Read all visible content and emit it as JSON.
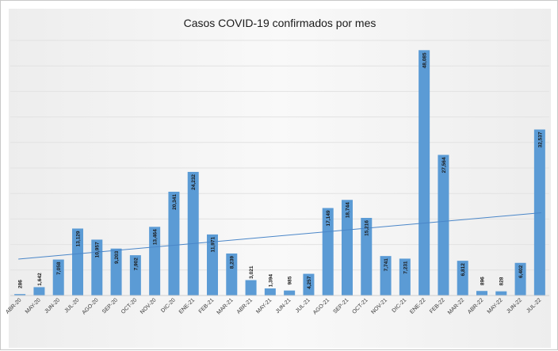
{
  "chart_data": {
    "type": "bar",
    "title": "Casos COVID-19 confirmados por mes",
    "xlabel": "",
    "ylabel": "",
    "ylim": [
      0,
      50000
    ],
    "grid": true,
    "legend": "none",
    "trendline": "linear",
    "categories": [
      "ABR-20",
      "MAY-20",
      "JUN-20",
      "JUL-20",
      "AGO-20",
      "SEP-20",
      "OCT-20",
      "NOV-20",
      "DIC-20",
      "ENE-21",
      "FEB-21",
      "MAR-21",
      "ABR-21",
      "MAY-21",
      "JUN-21",
      "JUL-21",
      "AGO-21",
      "SEP-21",
      "OCT-21",
      "NOV-21",
      "DIC-21",
      "ENE-22",
      "FEB-22",
      "MAR-22",
      "ABR-22",
      "MAY-22",
      "JUN-22",
      "JUL-22"
    ],
    "values": [
      286,
      1642,
      7058,
      13129,
      10957,
      9203,
      7902,
      13464,
      20341,
      24232,
      11971,
      8239,
      3021,
      1394,
      985,
      4257,
      17149,
      18744,
      15216,
      7741,
      7231,
      48085,
      27564,
      6812,
      896,
      828,
      6402,
      32537
    ],
    "value_labels": [
      "286",
      "1,642",
      "7,058",
      "13,129",
      "10,957",
      "9,203",
      "7,902",
      "13,464",
      "20,341",
      "24,232",
      "11,971",
      "8,239",
      "3,021",
      "1,394",
      "985",
      "4,257",
      "17,149",
      "18,744",
      "15,216",
      "7,741",
      "7,231",
      "48,085",
      "27,564",
      "6,812",
      "896",
      "828",
      "6,402",
      "32,537"
    ],
    "colors": {
      "bar": "#5b9bd5",
      "trendline": "#4a86c8",
      "grid": "#e2e2e2",
      "background": "#f2f2f2"
    }
  }
}
